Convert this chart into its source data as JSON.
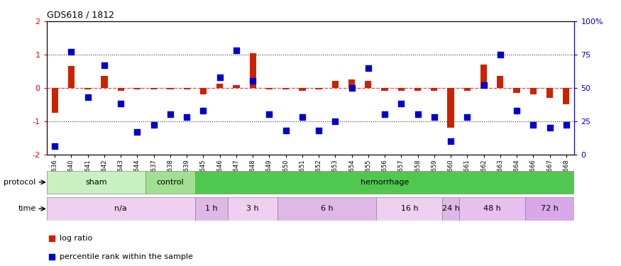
{
  "title": "GDS618 / 1812",
  "samples": [
    "GSM16636",
    "GSM16640",
    "GSM16641",
    "GSM16642",
    "GSM16643",
    "GSM16644",
    "GSM16637",
    "GSM16638",
    "GSM16639",
    "GSM16645",
    "GSM16646",
    "GSM16647",
    "GSM16648",
    "GSM16649",
    "GSM16650",
    "GSM16651",
    "GSM16652",
    "GSM16653",
    "GSM16654",
    "GSM16655",
    "GSM16656",
    "GSM16657",
    "GSM16658",
    "GSM16659",
    "GSM16660",
    "GSM16661",
    "GSM16662",
    "GSM16663",
    "GSM16664",
    "GSM16666",
    "GSM16667",
    "GSM16668"
  ],
  "log_ratio": [
    -0.75,
    0.65,
    -0.05,
    0.35,
    -0.08,
    -0.05,
    -0.05,
    -0.05,
    -0.05,
    -0.2,
    0.12,
    0.08,
    1.05,
    -0.05,
    -0.05,
    -0.1,
    -0.05,
    0.2,
    0.25,
    0.2,
    -0.08,
    -0.08,
    -0.08,
    -0.08,
    -1.2,
    -0.08,
    0.7,
    0.35,
    -0.15,
    -0.2,
    -0.3,
    -0.5
  ],
  "percentile": [
    6,
    77,
    43,
    67,
    38,
    17,
    22,
    30,
    28,
    33,
    58,
    78,
    55,
    30,
    18,
    28,
    18,
    25,
    50,
    65,
    30,
    38,
    30,
    28,
    10,
    28,
    52,
    75,
    33,
    22,
    20,
    22
  ],
  "protocol_bands": [
    {
      "label": "sham",
      "start": 0,
      "end": 6,
      "color": "#c8f0c0"
    },
    {
      "label": "control",
      "start": 6,
      "end": 9,
      "color": "#a0e090"
    },
    {
      "label": "hemorrhage",
      "start": 9,
      "end": 32,
      "color": "#50c850"
    }
  ],
  "time_bands": [
    {
      "label": "n/a",
      "start": 0,
      "end": 9,
      "color": "#f0d0f0"
    },
    {
      "label": "1 h",
      "start": 9,
      "end": 11,
      "color": "#e0b8e8"
    },
    {
      "label": "3 h",
      "start": 11,
      "end": 14,
      "color": "#f0d0f0"
    },
    {
      "label": "6 h",
      "start": 14,
      "end": 20,
      "color": "#e0b8e8"
    },
    {
      "label": "16 h",
      "start": 20,
      "end": 24,
      "color": "#f0d0f0"
    },
    {
      "label": "24 h",
      "start": 24,
      "end": 25,
      "color": "#e0b8e8"
    },
    {
      "label": "48 h",
      "start": 25,
      "end": 29,
      "color": "#e8c0f0"
    },
    {
      "label": "72 h",
      "start": 29,
      "end": 32,
      "color": "#d8a8e8"
    }
  ],
  "ylim": [
    -2,
    2
  ],
  "yticks_left": [
    -2,
    -1,
    0,
    1,
    2
  ],
  "yticks_right": [
    0,
    25,
    50,
    75,
    100
  ],
  "bar_color": "#cc2200",
  "square_color": "#0000cc",
  "ref_line_color": "#ff4444",
  "dot_line_color": "#333333"
}
